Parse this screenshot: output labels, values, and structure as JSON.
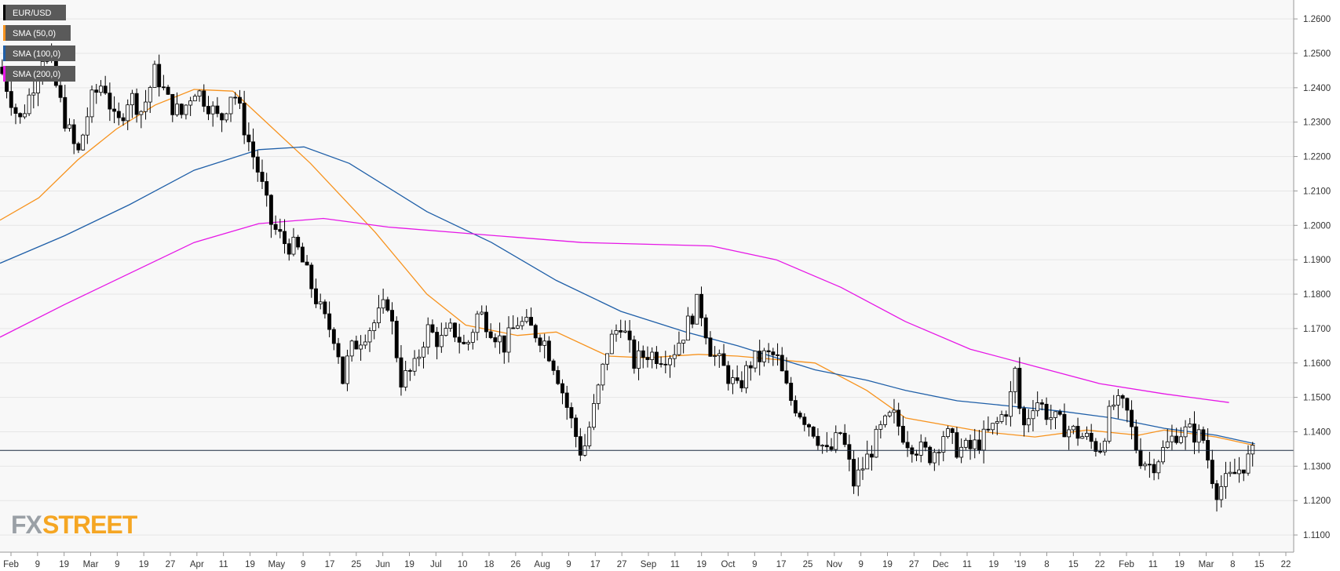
{
  "chart_data": {
    "type": "candlestick",
    "title": "",
    "ylim": [
      1.105,
      1.2655
    ],
    "y_ticks": [
      "1.2600",
      "1.2500",
      "1.2400",
      "1.2300",
      "1.2200",
      "1.2100",
      "1.2000",
      "1.1900",
      "1.1800",
      "1.1700",
      "1.1600",
      "1.1500",
      "1.1400",
      "1.1300",
      "1.1200",
      "1.1100"
    ],
    "x_ticks": [
      "Feb",
      "9",
      "19",
      "Mar",
      "9",
      "19",
      "27",
      "Apr",
      "11",
      "19",
      "May",
      "9",
      "17",
      "25",
      "Jun",
      "19",
      "Jul",
      "10",
      "18",
      "26",
      "Aug",
      "9",
      "17",
      "27",
      "Sep",
      "11",
      "19",
      "Oct",
      "9",
      "17",
      "25",
      "Nov",
      "9",
      "19",
      "27",
      "Dec",
      "11",
      "19",
      "'19",
      "8",
      "15",
      "22",
      "Feb",
      "11",
      "19",
      "Mar",
      "8",
      "15",
      "22"
    ],
    "grid": true,
    "legend": {
      "placement": "top-left",
      "entries": [
        {
          "label": "EUR/USD",
          "color": "#000000"
        },
        {
          "label": "SMA (50,0)",
          "color": "#f7931e"
        },
        {
          "label": "SMA (100,0)",
          "color": "#1f5fa8"
        },
        {
          "label": "SMA (200,0)",
          "color": "#e617e6"
        }
      ]
    },
    "current_price": {
      "label": "1.13457",
      "value": 1.13457
    },
    "series": [
      {
        "name": "SMA (50,0)",
        "color": "#f7931e",
        "points": [
          [
            0,
            1.2015
          ],
          [
            0.03,
            1.208
          ],
          [
            0.06,
            1.219
          ],
          [
            0.09,
            1.228
          ],
          [
            0.12,
            1.235
          ],
          [
            0.15,
            1.2395
          ],
          [
            0.18,
            1.239
          ],
          [
            0.2,
            1.232
          ],
          [
            0.24,
            1.218
          ],
          [
            0.29,
            1.198
          ],
          [
            0.33,
            1.18
          ],
          [
            0.36,
            1.171
          ],
          [
            0.4,
            1.168
          ],
          [
            0.43,
            1.169
          ],
          [
            0.47,
            1.162
          ],
          [
            0.5,
            1.1615
          ],
          [
            0.54,
            1.1625
          ],
          [
            0.57,
            1.162
          ],
          [
            0.63,
            1.16
          ],
          [
            0.67,
            1.152
          ],
          [
            0.7,
            1.144
          ],
          [
            0.76,
            1.14
          ],
          [
            0.8,
            1.1385
          ],
          [
            0.84,
            1.1405
          ],
          [
            0.88,
            1.139
          ],
          [
            0.9,
            1.1405
          ],
          [
            0.94,
            1.1385
          ],
          [
            0.97,
            1.136
          ]
        ]
      },
      {
        "name": "SMA (100,0)",
        "color": "#1f5fa8",
        "points": [
          [
            0,
            1.189
          ],
          [
            0.05,
            1.197
          ],
          [
            0.1,
            1.206
          ],
          [
            0.15,
            1.216
          ],
          [
            0.2,
            1.222
          ],
          [
            0.235,
            1.2228
          ],
          [
            0.27,
            1.218
          ],
          [
            0.33,
            1.204
          ],
          [
            0.38,
            1.195
          ],
          [
            0.43,
            1.184
          ],
          [
            0.48,
            1.175
          ],
          [
            0.53,
            1.169
          ],
          [
            0.57,
            1.165
          ],
          [
            0.63,
            1.158
          ],
          [
            0.67,
            1.155
          ],
          [
            0.7,
            1.152
          ],
          [
            0.74,
            1.149
          ],
          [
            0.78,
            1.1475
          ],
          [
            0.82,
            1.146
          ],
          [
            0.86,
            1.144
          ],
          [
            0.9,
            1.141
          ],
          [
            0.94,
            1.139
          ],
          [
            0.97,
            1.1365
          ]
        ]
      },
      {
        "name": "SMA (200,0)",
        "color": "#e617e6",
        "points": [
          [
            0,
            1.1675
          ],
          [
            0.05,
            1.177
          ],
          [
            0.1,
            1.186
          ],
          [
            0.15,
            1.195
          ],
          [
            0.2,
            1.2005
          ],
          [
            0.25,
            1.202
          ],
          [
            0.3,
            1.1995
          ],
          [
            0.35,
            1.198
          ],
          [
            0.4,
            1.1965
          ],
          [
            0.45,
            1.195
          ],
          [
            0.5,
            1.1945
          ],
          [
            0.55,
            1.194
          ],
          [
            0.6,
            1.19
          ],
          [
            0.65,
            1.182
          ],
          [
            0.7,
            1.172
          ],
          [
            0.75,
            1.164
          ],
          [
            0.8,
            1.159
          ],
          [
            0.85,
            1.154
          ],
          [
            0.9,
            1.151
          ],
          [
            0.95,
            1.1485
          ]
        ]
      },
      {
        "name": "EUR/USD",
        "color": "#000000",
        "price_path": [
          [
            0,
            1.246
          ],
          [
            0.015,
            1.23
          ],
          [
            0.025,
            1.24
          ],
          [
            0.035,
            1.252
          ],
          [
            0.05,
            1.231
          ],
          [
            0.06,
            1.22
          ],
          [
            0.07,
            1.236
          ],
          [
            0.08,
            1.242
          ],
          [
            0.09,
            1.228
          ],
          [
            0.1,
            1.238
          ],
          [
            0.11,
            1.233
          ],
          [
            0.12,
            1.245
          ],
          [
            0.13,
            1.236
          ],
          [
            0.14,
            1.232
          ],
          [
            0.15,
            1.24
          ],
          [
            0.16,
            1.236
          ],
          [
            0.17,
            1.23
          ],
          [
            0.18,
            1.24
          ],
          [
            0.19,
            1.227
          ],
          [
            0.2,
            1.215
          ],
          [
            0.21,
            1.2
          ],
          [
            0.22,
            1.195
          ],
          [
            0.23,
            1.193
          ],
          [
            0.24,
            1.183
          ],
          [
            0.25,
            1.173
          ],
          [
            0.26,
            1.167
          ],
          [
            0.265,
            1.155
          ],
          [
            0.27,
            1.163
          ],
          [
            0.28,
            1.168
          ],
          [
            0.29,
            1.172
          ],
          [
            0.3,
            1.178
          ],
          [
            0.31,
            1.155
          ],
          [
            0.32,
            1.158
          ],
          [
            0.33,
            1.17
          ],
          [
            0.34,
            1.166
          ],
          [
            0.35,
            1.17
          ],
          [
            0.36,
            1.164
          ],
          [
            0.37,
            1.175
          ],
          [
            0.38,
            1.17
          ],
          [
            0.39,
            1.165
          ],
          [
            0.4,
            1.172
          ],
          [
            0.41,
            1.17
          ],
          [
            0.42,
            1.167
          ],
          [
            0.43,
            1.158
          ],
          [
            0.44,
            1.145
          ],
          [
            0.45,
            1.133
          ],
          [
            0.46,
            1.148
          ],
          [
            0.47,
            1.165
          ],
          [
            0.48,
            1.172
          ],
          [
            0.49,
            1.16
          ],
          [
            0.5,
            1.163
          ],
          [
            0.51,
            1.162
          ],
          [
            0.52,
            1.163
          ],
          [
            0.53,
            1.17
          ],
          [
            0.54,
            1.178
          ],
          [
            0.55,
            1.163
          ],
          [
            0.56,
            1.158
          ],
          [
            0.57,
            1.152
          ],
          [
            0.58,
            1.16
          ],
          [
            0.59,
            1.162
          ],
          [
            0.6,
            1.162
          ],
          [
            0.61,
            1.15
          ],
          [
            0.62,
            1.145
          ],
          [
            0.63,
            1.14
          ],
          [
            0.64,
            1.133
          ],
          [
            0.65,
            1.14
          ],
          [
            0.66,
            1.125
          ],
          [
            0.67,
            1.132
          ],
          [
            0.68,
            1.14
          ],
          [
            0.69,
            1.145
          ],
          [
            0.7,
            1.138
          ],
          [
            0.71,
            1.135
          ],
          [
            0.72,
            1.133
          ],
          [
            0.73,
            1.14
          ],
          [
            0.74,
            1.135
          ],
          [
            0.75,
            1.135
          ],
          [
            0.76,
            1.138
          ],
          [
            0.77,
            1.142
          ],
          [
            0.78,
            1.148
          ],
          [
            0.785,
            1.158
          ],
          [
            0.79,
            1.14
          ],
          [
            0.8,
            1.15
          ],
          [
            0.81,
            1.145
          ],
          [
            0.82,
            1.142
          ],
          [
            0.83,
            1.14
          ],
          [
            0.84,
            1.138
          ],
          [
            0.85,
            1.135
          ],
          [
            0.86,
            1.148
          ],
          [
            0.87,
            1.147
          ],
          [
            0.88,
            1.133
          ],
          [
            0.89,
            1.13
          ],
          [
            0.9,
            1.135
          ],
          [
            0.91,
            1.14
          ],
          [
            0.92,
            1.14
          ],
          [
            0.93,
            1.138
          ],
          [
            0.935,
            1.13
          ],
          [
            0.94,
            1.123
          ],
          [
            0.95,
            1.126
          ],
          [
            0.96,
            1.13
          ],
          [
            0.97,
            1.134
          ]
        ]
      }
    ]
  },
  "brand": {
    "logo_fx": "FX",
    "logo_street": "STREET"
  }
}
